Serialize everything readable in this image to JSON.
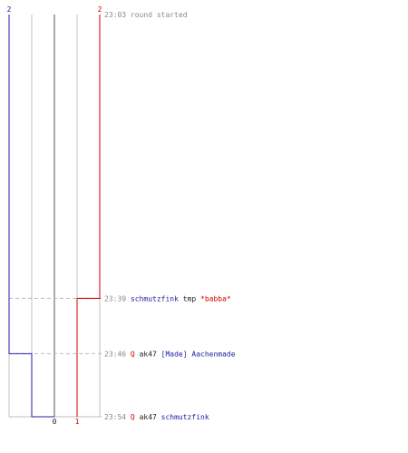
{
  "chart_data": {
    "type": "line",
    "title": "",
    "colors": {
      "grid": "#c0c0c0",
      "zero_line": "#555555",
      "guide": "#bbbbbb",
      "time": "#888888",
      "blue": "#2020a0",
      "red": "#d00000",
      "text": "#222222"
    },
    "x_ticks": [
      "0",
      "1"
    ],
    "x_range": [
      -2,
      2
    ],
    "series": [
      {
        "color": "#2020a0",
        "top_label": "2",
        "steps": [
          {
            "time": "23:03",
            "value": -2
          },
          {
            "time": "23:46",
            "value": -1
          },
          {
            "time": "23:54",
            "value": 0
          }
        ]
      },
      {
        "color": "#d00000",
        "top_label": "2",
        "steps": [
          {
            "time": "23:03",
            "value": 2
          },
          {
            "time": "23:39",
            "value": 1
          }
        ]
      }
    ],
    "events": [
      {
        "time": "23:03",
        "parts": [
          {
            "text": "round started",
            "style": "grey"
          }
        ]
      },
      {
        "time": "23:39",
        "parts": [
          {
            "text": "schmutzfink",
            "style": "blue"
          },
          {
            "text": " tmp ",
            "style": "plain"
          },
          {
            "text": "*babba*",
            "style": "red"
          }
        ]
      },
      {
        "time": "23:46",
        "parts": [
          {
            "text": "Q",
            "style": "red"
          },
          {
            "text": " ak47 ",
            "style": "plain"
          },
          {
            "text": "[Made] Aachenmade",
            "style": "blue"
          }
        ]
      },
      {
        "time": "23:54",
        "parts": [
          {
            "text": "Q",
            "style": "red"
          },
          {
            "text": " ak47 ",
            "style": "plain"
          },
          {
            "text": "schmutzfink",
            "style": "blue"
          }
        ]
      }
    ]
  }
}
